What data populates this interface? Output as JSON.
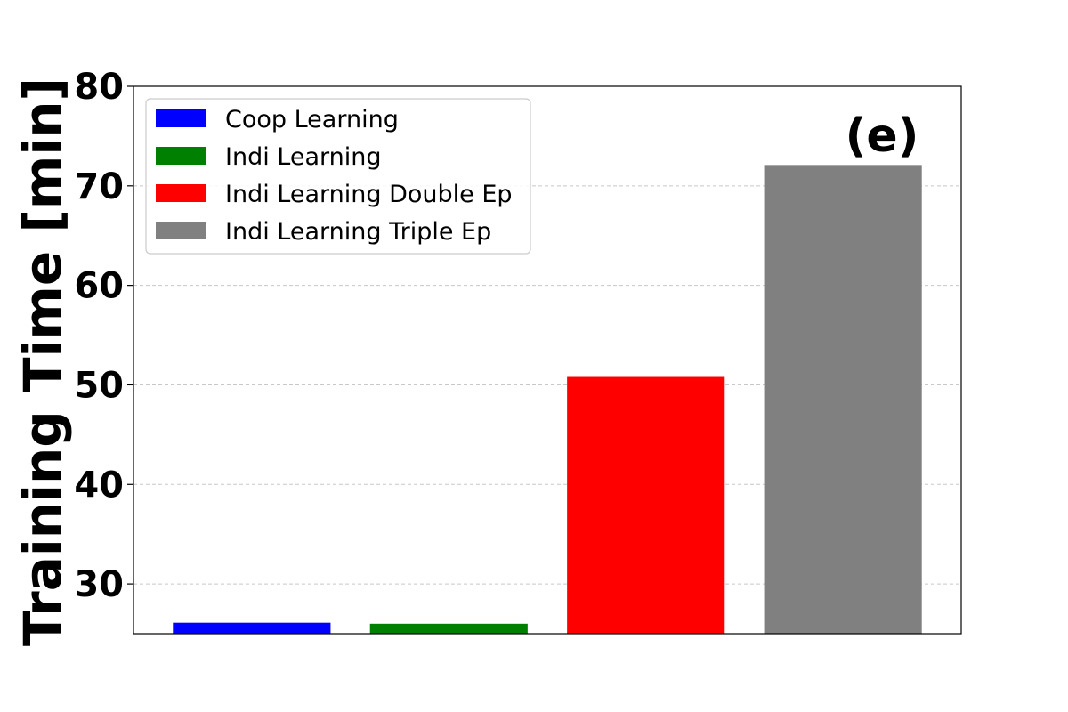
{
  "chart_data": {
    "type": "bar",
    "title": "",
    "panel_label": "(e)",
    "xlabel": "",
    "ylabel": "Training Time [min]",
    "ylim": [
      25,
      80
    ],
    "yticks": [
      30,
      40,
      50,
      60,
      70,
      80
    ],
    "grid": "y-dashed",
    "legend_position": "top-left",
    "categories": [
      "Coop Learning",
      "Indi Learning",
      "Indi Learning Double Ep",
      "Indi Learning Triple Ep"
    ],
    "values": [
      26.1,
      26.0,
      50.8,
      72.1
    ],
    "colors": [
      "#0000ff",
      "#008000",
      "#ff0000",
      "#808080"
    ]
  }
}
